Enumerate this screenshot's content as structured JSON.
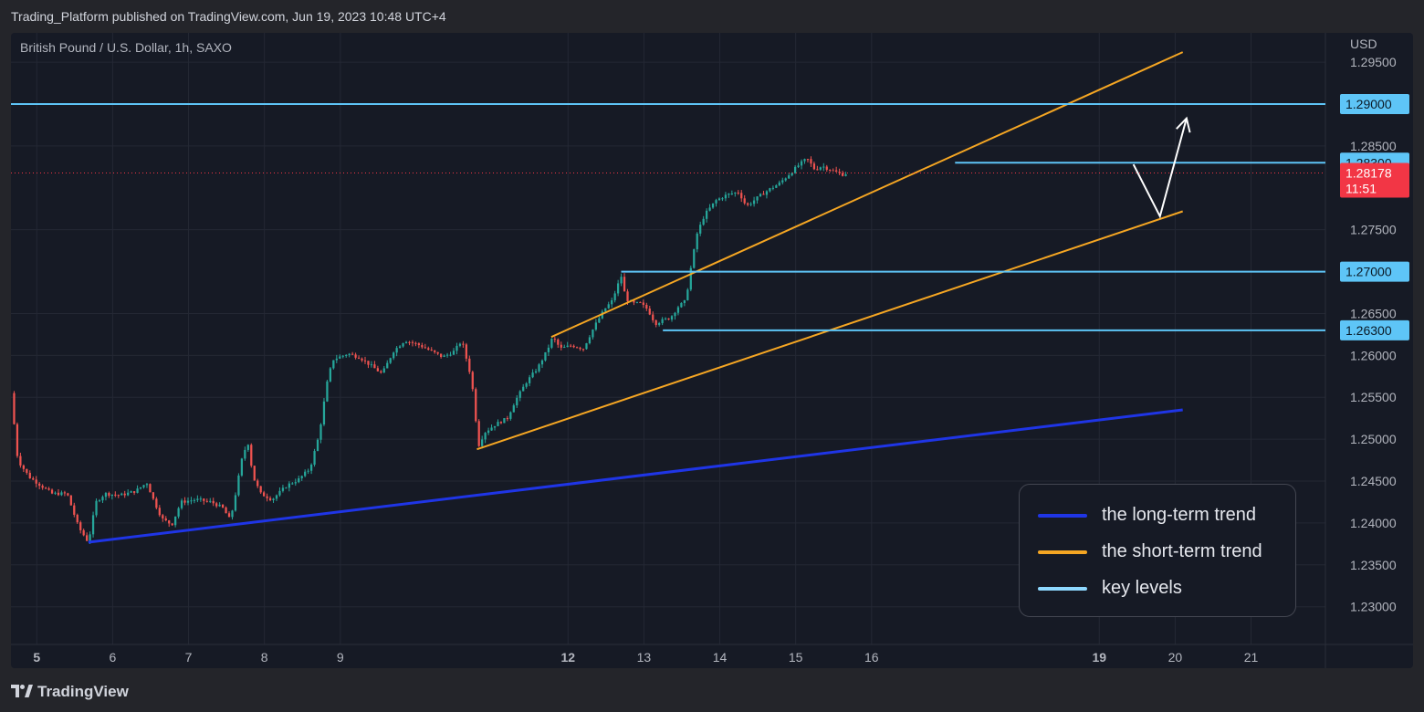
{
  "header": {
    "published": "Trading_Platform published on TradingView.com, Jun 19, 2023 10:48 UTC+4"
  },
  "symbol": "British Pound / U.S. Dollar, 1h, SAXO",
  "currency": "USD",
  "footer": {
    "brand": "TradingView",
    "logo_icon": "tradingview-logo-icon"
  },
  "colors": {
    "background": "#161a25",
    "up": "#26a69a",
    "down": "#ef5350",
    "long_term": "#1f35e6",
    "short_term": "#f5a623",
    "key_level": "#5ec5f7",
    "current_price": "#f23645"
  },
  "legend": {
    "items": [
      {
        "label": "the long-term trend",
        "color": "#1f35e6"
      },
      {
        "label": "the short-term trend",
        "color": "#f5a623"
      },
      {
        "label": "key levels",
        "color": "#8ed8ff"
      }
    ]
  },
  "chart_data": {
    "type": "candlestick",
    "symbol": "British Pound / U.S. Dollar, 1h, SAXO",
    "ylim": [
      1.2255,
      1.2985
    ],
    "y_ticks": [
      1.23,
      1.235,
      1.24,
      1.245,
      1.25,
      1.255,
      1.26,
      1.265,
      1.275,
      1.285,
      1.295
    ],
    "y_tick_labels": [
      "1.23000",
      "1.23500",
      "1.24000",
      "1.24500",
      "1.25000",
      "1.25500",
      "1.26000",
      "1.26500",
      "1.27500",
      "1.28500",
      "1.29500"
    ],
    "x_range_days": [
      4.66,
      21.98
    ],
    "x_ticks": [
      {
        "day": 5,
        "label": "5",
        "bold": true
      },
      {
        "day": 6,
        "label": "6",
        "bold": false
      },
      {
        "day": 7,
        "label": "7",
        "bold": false
      },
      {
        "day": 8,
        "label": "8",
        "bold": false
      },
      {
        "day": 9,
        "label": "9",
        "bold": false
      },
      {
        "day": 12,
        "label": "12",
        "bold": true
      },
      {
        "day": 13,
        "label": "13",
        "bold": false
      },
      {
        "day": 14,
        "label": "14",
        "bold": false
      },
      {
        "day": 15,
        "label": "15",
        "bold": false
      },
      {
        "day": 16,
        "label": "16",
        "bold": false
      },
      {
        "day": 19,
        "label": "19",
        "bold": true
      },
      {
        "day": 20,
        "label": "20",
        "bold": false
      },
      {
        "day": 21,
        "label": "21",
        "bold": false
      }
    ],
    "price_path": [
      [
        4.66,
        1.2555
      ],
      [
        4.75,
        1.2475
      ],
      [
        4.9,
        1.2455
      ],
      [
        5.05,
        1.2445
      ],
      [
        5.2,
        1.2435
      ],
      [
        5.4,
        1.2435
      ],
      [
        5.55,
        1.2395
      ],
      [
        5.68,
        1.2377
      ],
      [
        5.78,
        1.2425
      ],
      [
        5.9,
        1.2435
      ],
      [
        6.1,
        1.2433
      ],
      [
        6.3,
        1.2438
      ],
      [
        6.45,
        1.2448
      ],
      [
        6.55,
        1.2425
      ],
      [
        6.65,
        1.2405
      ],
      [
        6.78,
        1.2398
      ],
      [
        6.9,
        1.2425
      ],
      [
        7.1,
        1.2428
      ],
      [
        7.3,
        1.2425
      ],
      [
        7.45,
        1.2418
      ],
      [
        7.55,
        1.2403
      ],
      [
        7.62,
        1.2435
      ],
      [
        7.7,
        1.2475
      ],
      [
        7.78,
        1.2498
      ],
      [
        7.85,
        1.2455
      ],
      [
        7.95,
        1.2435
      ],
      [
        8.1,
        1.2428
      ],
      [
        8.3,
        1.2445
      ],
      [
        8.45,
        1.2452
      ],
      [
        8.6,
        1.2465
      ],
      [
        8.72,
        1.2505
      ],
      [
        8.82,
        1.2565
      ],
      [
        8.9,
        1.2595
      ],
      [
        9.1,
        1.2602
      ],
      [
        9.25,
        1.2598
      ],
      [
        9.4,
        1.2588
      ],
      [
        9.55,
        1.2578
      ],
      [
        9.7,
        1.2605
      ],
      [
        9.85,
        1.2618
      ],
      [
        10.05,
        1.2612
      ],
      [
        10.2,
        1.2605
      ],
      [
        10.35,
        1.2598
      ],
      [
        10.5,
        1.2605
      ],
      [
        10.6,
        1.2618
      ],
      [
        10.72,
        1.2575
      ],
      [
        10.78,
        1.2535
      ],
      [
        10.8,
        1.2488
      ],
      [
        10.9,
        1.2508
      ],
      [
        11.05,
        1.2518
      ],
      [
        11.2,
        1.2525
      ],
      [
        11.3,
        1.2545
      ],
      [
        11.45,
        1.2568
      ],
      [
        11.6,
        1.2585
      ],
      [
        11.72,
        1.2605
      ],
      [
        11.8,
        1.2622
      ],
      [
        11.9,
        1.2608
      ],
      [
        12.05,
        1.2612
      ],
      [
        12.2,
        1.2608
      ],
      [
        12.35,
        1.2635
      ],
      [
        12.48,
        1.2655
      ],
      [
        12.58,
        1.2665
      ],
      [
        12.7,
        1.2695
      ],
      [
        12.76,
        1.2668
      ],
      [
        12.85,
        1.2662
      ],
      [
        12.95,
        1.2662
      ],
      [
        13.05,
        1.2655
      ],
      [
        13.15,
        1.2638
      ],
      [
        13.25,
        1.2642
      ],
      [
        13.35,
        1.2645
      ],
      [
        13.45,
        1.2658
      ],
      [
        13.55,
        1.2665
      ],
      [
        13.62,
        1.2705
      ],
      [
        13.7,
        1.2745
      ],
      [
        13.8,
        1.2768
      ],
      [
        13.95,
        1.2785
      ],
      [
        14.1,
        1.2792
      ],
      [
        14.25,
        1.2795
      ],
      [
        14.35,
        1.2778
      ],
      [
        14.45,
        1.2785
      ],
      [
        14.55,
        1.2792
      ],
      [
        14.65,
        1.2798
      ],
      [
        14.78,
        1.2805
      ],
      [
        14.9,
        1.2815
      ],
      [
        15.05,
        1.2828
      ],
      [
        15.15,
        1.2835
      ],
      [
        15.25,
        1.2822
      ],
      [
        15.35,
        1.2826
      ],
      [
        15.45,
        1.2822
      ],
      [
        15.55,
        1.2818
      ],
      [
        15.62,
        1.2816
      ],
      [
        15.7,
        1.2818
      ]
    ],
    "series": [
      {
        "name": "the long-term trend",
        "from": [
          5.68,
          1.2377
        ],
        "to": [
          20.1,
          1.2535
        ]
      },
      {
        "name": "the short-term trend",
        "lines": [
          {
            "from": [
              10.8,
              1.2488
            ],
            "to": [
              20.1,
              1.2772
            ]
          },
          {
            "from": [
              11.78,
              1.2622
            ],
            "to": [
              20.1,
              1.2962
            ]
          }
        ]
      },
      {
        "name": "key levels",
        "levels": [
          {
            "value": 1.29,
            "from_day": 4.66,
            "label": "1.29000"
          },
          {
            "value": 1.283,
            "from_day": 17.1,
            "label": "1.28300"
          },
          {
            "value": 1.27,
            "from_day": 12.7,
            "label": "1.27000"
          },
          {
            "value": 1.263,
            "from_day": 13.25,
            "label": "1.26300"
          }
        ]
      }
    ],
    "projection": [
      [
        19.45,
        1.2828
      ],
      [
        19.8,
        1.2766
      ],
      [
        20.15,
        1.2883
      ]
    ],
    "current_price": {
      "value": 1.28178,
      "label": "1.28178",
      "countdown": "11:51"
    }
  }
}
